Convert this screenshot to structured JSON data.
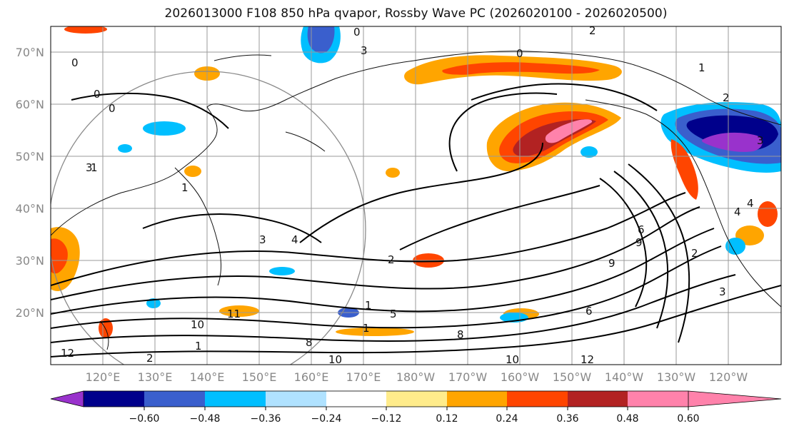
{
  "title": "2026013000 F108 850 hPa qvapor, Rossby Wave PC (2026020100 - 2026020500)",
  "map": {
    "lat_labels": [
      "70°N",
      "60°N",
      "50°N",
      "40°N",
      "30°N",
      "20°N"
    ],
    "lon_labels": [
      "120°E",
      "130°E",
      "140°E",
      "150°E",
      "160°E",
      "170°E",
      "180°W",
      "170°W",
      "160°W",
      "150°W",
      "140°W",
      "130°W",
      "120°W"
    ],
    "contour_labels": [
      "0",
      "0",
      "0",
      "0",
      "1",
      "2",
      "1",
      "2",
      "3",
      "0",
      "1",
      "3",
      "4",
      "2",
      "5",
      "4",
      "3",
      "2",
      "9",
      "6",
      "10",
      "11",
      "12",
      "10",
      "1",
      "1",
      "1",
      "10",
      "8",
      "9",
      "6",
      "3",
      "4",
      "2",
      "12",
      "8",
      "3"
    ]
  },
  "colorbar": {
    "ticks": [
      "−0.60",
      "−0.48",
      "−0.36",
      "−0.24",
      "−0.12",
      "0.12",
      "0.24",
      "0.36",
      "0.48",
      "0.60"
    ],
    "colors": [
      "#9932cc",
      "#00008b",
      "#3a5fcd",
      "#00bfff",
      "#b0e2ff",
      "#ffffff",
      "#ffec8b",
      "#ffa500",
      "#ff4500",
      "#b22222",
      "#ff82ab"
    ]
  }
}
